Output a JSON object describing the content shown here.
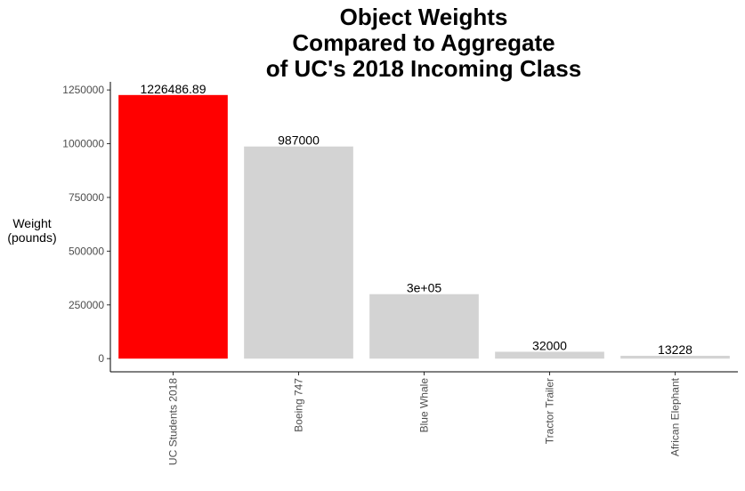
{
  "chart_data": {
    "type": "bar",
    "title_lines": [
      "Object Weights",
      "Compared to Aggregate",
      "of UC's 2018 Incoming Class"
    ],
    "ylabel_lines": [
      "Weight",
      "(pounds)"
    ],
    "xlabel": "",
    "categories": [
      "UC Students 2018",
      "Boeing 747",
      "Blue Whale",
      "Tractor Trailer",
      "African Elephant"
    ],
    "values": [
      1226486.89,
      987000,
      300000,
      32000,
      13228
    ],
    "data_labels": [
      "1226486.89",
      "987000",
      "3e+05",
      "32000",
      "13228"
    ],
    "colors": [
      "#ff0000",
      "#d3d3d3",
      "#d3d3d3",
      "#d3d3d3",
      "#d3d3d3"
    ],
    "yticks": [
      0,
      250000,
      500000,
      750000,
      1000000,
      1250000
    ],
    "ytick_labels": [
      "0",
      "250000",
      "500000",
      "750000",
      "1000000",
      "1250000"
    ],
    "ylim": [
      -61324,
      1287811
    ],
    "grid": false,
    "legend": "none"
  }
}
